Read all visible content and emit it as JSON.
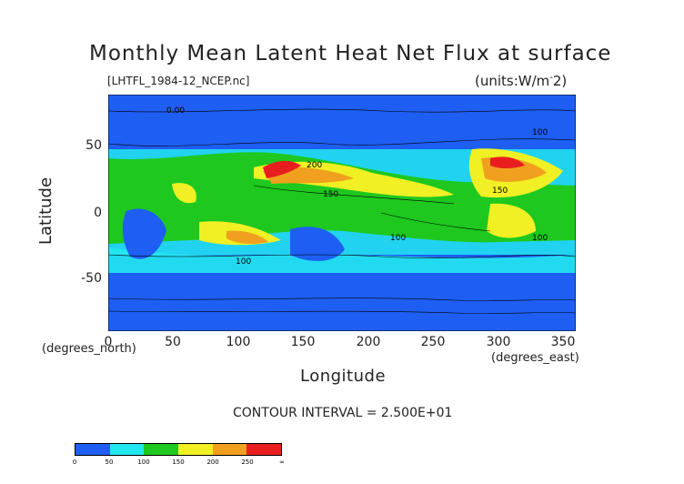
{
  "title": "Monthly Mean Latent Heat Net Flux at surface",
  "filename": "[LHTFL_1984-12_NCEP.nc]",
  "units": "(units:W/m^2)",
  "xlabel": "Longitude",
  "ylabel": "Latitude",
  "x_sublabel": "(degrees_east)",
  "y_sublabel": "(degrees_north)",
  "x_ticks": [
    "0",
    "50",
    "100",
    "150",
    "200",
    "250",
    "300",
    "350"
  ],
  "y_ticks": [
    "50",
    "0",
    "-50"
  ],
  "contour_interval": "CONTOUR INTERVAL = 2.500E+01",
  "contour_labels": [
    "100",
    "200",
    "150",
    "100",
    "100",
    "150",
    "100",
    "0.00"
  ],
  "colorbar": {
    "labels": [
      "0",
      "50",
      "100",
      "150",
      "200",
      "250",
      "∞"
    ],
    "colors": [
      "#1e5ef2",
      "#1e5ef2",
      "#22e8f0",
      "#1ec81e",
      "#f0f024",
      "#f0a01e",
      "#e81e1e"
    ]
  },
  "map_colors": {
    "low": "#1e5ef2",
    "mid_low": "#22e8f0",
    "mid": "#1ec81e",
    "mid_high": "#f0f024",
    "high": "#f0a01e",
    "very_high": "#e81e1e"
  }
}
